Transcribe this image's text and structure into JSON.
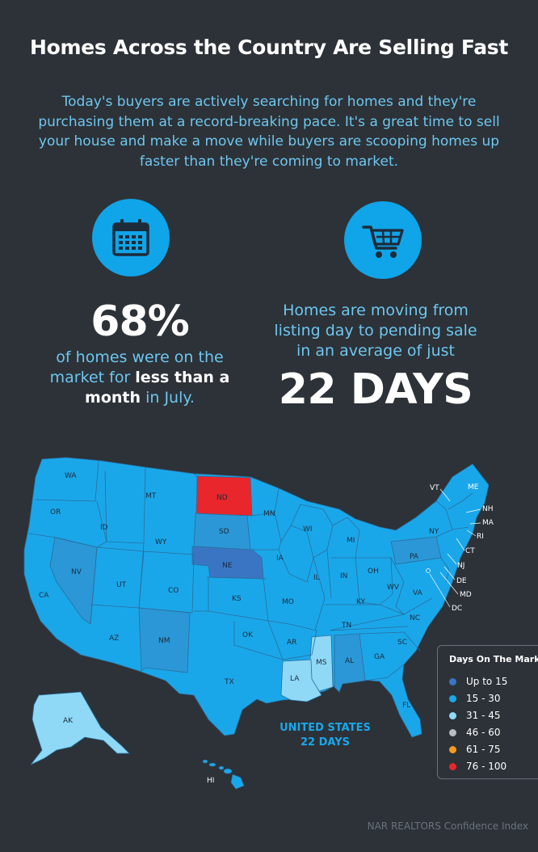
{
  "title": "Homes Across the Country Are Selling Fast",
  "intro": "Today's buyers are actively searching for homes and they're purchasing them at a record-breaking pace. It's a great time to sell your house and make a move while buyers are scooping homes up faster than they're coming to market.",
  "icons": {
    "left": "calendar-icon",
    "right": "shopping-cart-icon"
  },
  "stat_left": {
    "value": "68%",
    "text_1": "of homes were on the market for ",
    "bold": "less than a month",
    "text_2": " in July."
  },
  "stat_right": {
    "text": "Homes are moving from listing day to pending sale in an average of just",
    "value": "22 DAYS"
  },
  "map": {
    "national_label_1": "UNITED STATES",
    "national_label_2": "22 DAYS",
    "states": {
      "WA": "WA",
      "OR": "OR",
      "CA": "CA",
      "ID": "ID",
      "NV": "NV",
      "MT": "MT",
      "WY": "WY",
      "UT": "UT",
      "AZ": "AZ",
      "CO": "CO",
      "NM": "NM",
      "ND": "ND",
      "SD": "SD",
      "NE": "NE",
      "KS": "KS",
      "OK": "OK",
      "TX": "TX",
      "MN": "MN",
      "IA": "IA",
      "MO": "MO",
      "AR": "AR",
      "LA": "LA",
      "WI": "WI",
      "IL": "IL",
      "MI": "MI",
      "IN": "IN",
      "OH": "OH",
      "KY": "KY",
      "TN": "TN",
      "MS": "MS",
      "AL": "AL",
      "GA": "GA",
      "FL": "FL",
      "SC": "SC",
      "NC": "NC",
      "VA": "VA",
      "WV": "WV",
      "PA": "PA",
      "NY": "NY",
      "VT": "VT",
      "ME": "ME",
      "NH": "NH",
      "MA": "MA",
      "RI": "RI",
      "CT": "CT",
      "NJ": "NJ",
      "DE": "DE",
      "MD": "MD",
      "DC": "DC",
      "AK": "AK",
      "HI": "HI"
    }
  },
  "legend": {
    "title": "Days On The Market",
    "items": [
      {
        "label": "Up to 15",
        "color": "#3a75c4"
      },
      {
        "label": "15 - 30",
        "color": "#1aa7ea"
      },
      {
        "label": "31 - 45",
        "color": "#8fd9f7"
      },
      {
        "label": "46 - 60",
        "color": "#b9bdc2"
      },
      {
        "label": "61 - 75",
        "color": "#f39a1e"
      },
      {
        "label": "76 - 100",
        "color": "#e8262b"
      }
    ]
  },
  "source": "NAR REALTORS Confidence Index",
  "colors": {
    "background": "#2c3238",
    "accent": "#10a4e8",
    "text_light_blue": "#6ec6ee",
    "state_default": "#1aa7ea",
    "state_mid": "#2b97d6",
    "state_light": "#8fd9f7",
    "state_dark": "#3a75c4",
    "state_red": "#e8262b"
  }
}
